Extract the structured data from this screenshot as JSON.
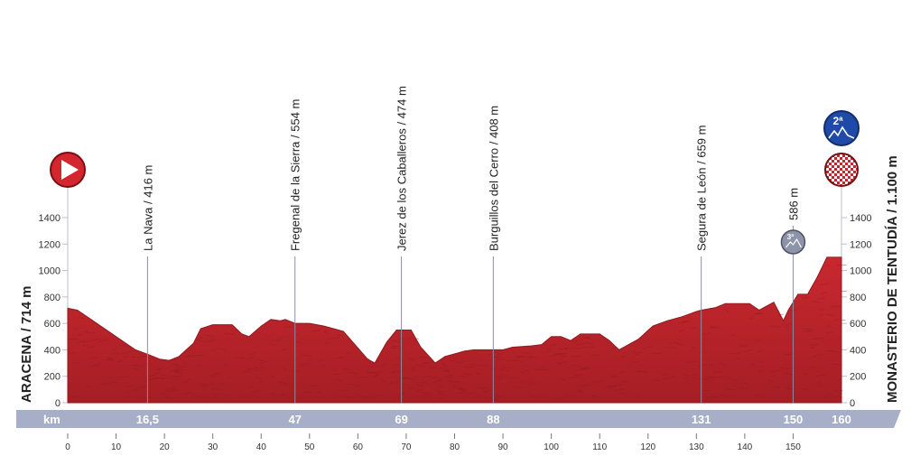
{
  "chart_data": {
    "type": "area",
    "title": "",
    "xlabel": "km",
    "ylabel": "",
    "xlim": [
      0,
      160
    ],
    "ylim": [
      0,
      1400
    ],
    "y_ticks": [
      "0",
      "200",
      "400",
      "600",
      "800",
      "1000",
      "1200",
      "1400"
    ],
    "x_ticks": [
      "0",
      "10",
      "20",
      "30",
      "40",
      "50",
      "60",
      "70",
      "80",
      "90",
      "100",
      "110",
      "120",
      "130",
      "140",
      "150"
    ],
    "start_label": "ARACENA / 714 m",
    "finish_label": "MONASTERIO DE TENTUDÍA / 1.100 m",
    "km_band_label": "km",
    "series": [
      {
        "color": "#c0262d",
        "x": [
          0,
          2,
          6,
          10,
          14,
          17,
          19,
          21,
          23,
          26,
          27.5,
          30,
          31.5,
          34,
          36,
          37.5,
          40,
          42,
          44,
          45,
          47,
          50,
          53,
          57,
          62,
          63.5,
          66,
          68,
          69,
          71,
          73,
          76,
          78,
          82,
          84,
          88,
          90,
          92,
          96,
          98,
          100,
          102,
          104,
          106,
          108,
          110,
          112,
          114,
          116,
          118,
          121,
          124,
          127,
          130,
          131,
          134,
          136,
          138,
          141,
          143,
          146,
          148,
          149,
          151,
          153,
          155,
          157,
          159,
          160
        ],
        "y": [
          714,
          700,
          600,
          500,
          400,
          360,
          330,
          320,
          350,
          450,
          560,
          590,
          590,
          590,
          520,
          500,
          580,
          630,
          620,
          630,
          600,
          600,
          580,
          540,
          330,
          300,
          460,
          550,
          550,
          550,
          420,
          300,
          350,
          390,
          400,
          400,
          400,
          420,
          430,
          440,
          500,
          500,
          470,
          520,
          520,
          520,
          470,
          400,
          440,
          480,
          580,
          620,
          650,
          690,
          700,
          720,
          750,
          750,
          750,
          700,
          760,
          620,
          700,
          820,
          820,
          950,
          1100,
          1100,
          1100
        ]
      }
    ],
    "waypoints": [
      {
        "label": "La Nava / 416 m",
        "km": 16.5,
        "km_label": "16,5"
      },
      {
        "label": "Fregenal de la Sierra / 554 m",
        "km": 47,
        "km_label": "47"
      },
      {
        "label": "Jerez de los Caballeros / 474 m",
        "km": 69,
        "km_label": "69"
      },
      {
        "label": "Burguillos del Cerro / 408 m",
        "km": 88,
        "km_label": "88"
      },
      {
        "label": "Segura de León / 659 m",
        "km": 131,
        "km_label": "131"
      },
      {
        "label": "586 m",
        "km": 150,
        "km_label": "150",
        "marker": "3ª"
      },
      {
        "label": "",
        "km": 160,
        "km_label": "160"
      }
    ],
    "finish_marker_category": "2ª",
    "colors": {
      "profile": "#c0262d",
      "profile_dark": "#8f1a1f",
      "km_band": "#a7aec7",
      "marker_blue": "#1f4aa8",
      "marker_grey": "#8d93a8",
      "grid": "#b9bfd0",
      "text": "#222222"
    }
  }
}
